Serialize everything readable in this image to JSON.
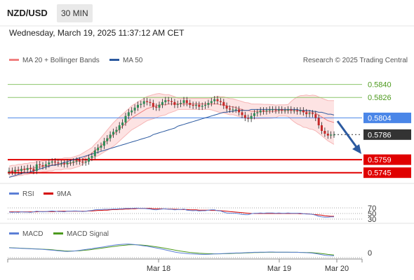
{
  "header": {
    "pair": "NZD/USD",
    "timeframe": "30 MIN"
  },
  "timestamp": "Wednesday, March 19, 2025 11:37:12 AM CET",
  "credit": "Research © 2025 Trading Central",
  "colors": {
    "ma20": "#f08080",
    "ma50": "#2c5aa0",
    "rsi": "#5b7fd6",
    "rsi_ma": "#d40000",
    "macd": "#5b7fd6",
    "macd_signal": "#4d9a1e",
    "resistance": "#8cc56a",
    "pivot": "#4a86e8",
    "support": "#e00000",
    "last": "#333333",
    "arrow": "#2c5aa0"
  },
  "chart_data": [
    {
      "type": "candlestick",
      "legend": [
        "MA 20 + Bollinger Bands",
        "MA 50"
      ],
      "ylim": [
        0.57335,
        0.58555
      ],
      "x_ticks": [
        "Mar 18",
        "Mar 19",
        "Mar 20"
      ],
      "price_levels": [
        {
          "label": "0.5840",
          "value": 0.584,
          "kind": "resistance"
        },
        {
          "label": "0.5826",
          "value": 0.5826,
          "kind": "resistance"
        },
        {
          "label": "0.5804",
          "value": 0.5804,
          "kind": "pivot"
        },
        {
          "label": "0.5786",
          "value": 0.5786,
          "kind": "last"
        },
        {
          "label": "0.5759",
          "value": 0.5759,
          "kind": "support"
        },
        {
          "label": "0.5745",
          "value": 0.5745,
          "kind": "support"
        }
      ],
      "close": [
        0.5747,
        0.5746,
        0.5748,
        0.5747,
        0.5749,
        0.5748,
        0.575,
        0.5749,
        0.5747,
        0.5754,
        0.5753,
        0.5752,
        0.5754,
        0.5756,
        0.5757,
        0.5756,
        0.5755,
        0.5755,
        0.5754,
        0.5756,
        0.5756,
        0.5757,
        0.5758,
        0.5757,
        0.5756,
        0.5757,
        0.5761,
        0.5763,
        0.5769,
        0.5772,
        0.5774,
        0.5779,
        0.5782,
        0.5786,
        0.5789,
        0.5791,
        0.5796,
        0.5799,
        0.5806,
        0.581,
        0.5812,
        0.5815,
        0.5818,
        0.5819,
        0.5822,
        0.5821,
        0.582,
        0.5816,
        0.5815,
        0.5818,
        0.5821,
        0.5823,
        0.5822,
        0.5821,
        0.5818,
        0.5819,
        0.582,
        0.5823,
        0.582,
        0.5818,
        0.5817,
        0.5818,
        0.5816,
        0.5817,
        0.5818,
        0.582,
        0.5822,
        0.5824,
        0.5822,
        0.5821,
        0.5817,
        0.5814,
        0.5813,
        0.5813,
        0.5813,
        0.581,
        0.5807,
        0.5804,
        0.5803,
        0.5806,
        0.5809,
        0.581,
        0.5812,
        0.5811,
        0.5812,
        0.5813,
        0.5813,
        0.5812,
        0.5813,
        0.5812,
        0.5812,
        0.5813,
        0.5812,
        0.5812,
        0.5811,
        0.5812,
        0.581,
        0.5808,
        0.5809,
        0.5808,
        0.5804,
        0.5796,
        0.579,
        0.5787,
        0.5785,
        0.5786,
        0.5786
      ],
      "ma20": [
        0.5746,
        0.5747,
        0.5747,
        0.5748,
        0.5748,
        0.5749,
        0.5749,
        0.575,
        0.575,
        0.5751,
        0.5751,
        0.5752,
        0.5752,
        0.5753,
        0.5753,
        0.5754,
        0.5754,
        0.5754,
        0.5755,
        0.5755,
        0.5755,
        0.5756,
        0.5757,
        0.5758,
        0.576,
        0.5762,
        0.5764,
        0.5766,
        0.5769,
        0.5771,
        0.5774,
        0.5777,
        0.578,
        0.5783,
        0.5786,
        0.5789,
        0.5792,
        0.5795,
        0.5798,
        0.5801,
        0.5804,
        0.5806,
        0.5808,
        0.581,
        0.5812,
        0.5814,
        0.5815,
        0.5816,
        0.5817,
        0.5818,
        0.5818,
        0.5818,
        0.5819,
        0.5819,
        0.5819,
        0.5819,
        0.5819,
        0.5819,
        0.5819,
        0.5819,
        0.5819,
        0.5819,
        0.5819,
        0.5819,
        0.5819,
        0.5819,
        0.5819,
        0.5819,
        0.5819,
        0.5818,
        0.5818,
        0.5817,
        0.5816,
        0.5816,
        0.5815,
        0.5814,
        0.5813,
        0.5812,
        0.5812,
        0.5811,
        0.5811,
        0.5811,
        0.5811,
        0.5811,
        0.5811,
        0.5811,
        0.5811,
        0.5811,
        0.5812,
        0.5812,
        0.5812,
        0.5812,
        0.5812,
        0.5812,
        0.5812,
        0.5812,
        0.5811,
        0.5811,
        0.581,
        0.581,
        0.5809,
        0.5807,
        0.5805,
        0.5803,
        0.5801,
        0.58,
        0.5799
      ],
      "ma50": [
        0.574,
        0.5741,
        0.5742,
        0.5743,
        0.5744,
        0.5745,
        0.5745,
        0.5746,
        0.5747,
        0.5748,
        0.5749,
        0.575,
        0.5751,
        0.5752,
        0.5753,
        0.5753,
        0.5754,
        0.5755,
        0.5756,
        0.5757,
        0.5758,
        0.5759,
        0.576,
        0.5761,
        0.5762,
        0.5763,
        0.5764,
        0.5765,
        0.5766,
        0.5767,
        0.5768,
        0.5769,
        0.577,
        0.5771,
        0.5772,
        0.5773,
        0.5774,
        0.5775,
        0.5776,
        0.5777,
        0.5778,
        0.5779,
        0.578,
        0.5781,
        0.5782,
        0.5783,
        0.5784,
        0.5786,
        0.5787,
        0.5788,
        0.5789,
        0.579,
        0.5791,
        0.5792,
        0.5793,
        0.5795,
        0.5796,
        0.5797,
        0.5798,
        0.5799,
        0.58,
        0.5801,
        0.5802,
        0.5803,
        0.5804,
        0.5805,
        0.5806,
        0.5807,
        0.5808,
        0.5809,
        0.581,
        0.581,
        0.5811,
        0.5811,
        0.5812,
        0.5812,
        0.5812,
        0.5812,
        0.5812,
        0.5813,
        0.5813,
        0.5813,
        0.5813,
        0.5813,
        0.5813,
        0.5813,
        0.5813,
        0.5813,
        0.5813,
        0.5813,
        0.5813,
        0.5813,
        0.5813,
        0.5813,
        0.5813,
        0.5812,
        0.5812,
        0.5812,
        0.5812,
        0.5811,
        0.5811,
        0.581,
        0.581,
        0.5809,
        0.5808,
        0.5808,
        0.5807
      ]
    },
    {
      "type": "line",
      "legend": [
        "RSI",
        "9MA"
      ],
      "ylim": [
        30,
        70
      ],
      "y_ticks": [
        "70",
        "50",
        "30"
      ],
      "rsi": [
        55,
        54,
        55,
        54,
        56,
        55,
        55,
        54,
        56,
        58,
        57,
        56,
        57,
        58,
        59,
        58,
        57,
        57,
        56,
        58,
        58,
        59,
        59,
        58,
        57,
        58,
        60,
        61,
        63,
        64,
        64,
        65,
        65,
        65,
        66,
        66,
        67,
        67,
        68,
        68,
        68,
        69,
        69,
        68,
        68,
        67,
        66,
        64,
        63,
        65,
        66,
        67,
        65,
        65,
        63,
        64,
        64,
        66,
        62,
        61,
        60,
        61,
        59,
        60,
        60,
        62,
        63,
        63,
        60,
        59,
        55,
        52,
        51,
        51,
        51,
        49,
        47,
        46,
        46,
        49,
        51,
        51,
        52,
        51,
        52,
        52,
        52,
        51,
        52,
        51,
        51,
        52,
        51,
        51,
        51,
        51,
        49,
        48,
        48,
        47,
        44,
        40,
        38,
        37,
        37,
        38,
        38
      ],
      "rsi_ma": [
        56,
        56,
        56,
        56,
        56,
        56,
        56,
        56,
        56,
        56,
        57,
        57,
        57,
        57,
        57,
        57,
        58,
        58,
        58,
        58,
        58,
        58,
        58,
        58,
        58,
        58,
        59,
        59,
        60,
        61,
        61,
        62,
        62,
        63,
        64,
        64,
        65,
        65,
        66,
        66,
        67,
        67,
        68,
        68,
        68,
        68,
        68,
        67,
        67,
        67,
        67,
        66,
        66,
        66,
        65,
        65,
        64,
        64,
        64,
        63,
        63,
        63,
        62,
        62,
        62,
        62,
        61,
        61,
        61,
        60,
        59,
        58,
        57,
        56,
        55,
        54,
        53,
        52,
        51,
        50,
        50,
        50,
        50,
        50,
        50,
        50,
        50,
        50,
        50,
        50,
        50,
        50,
        50,
        50,
        50,
        49,
        49,
        49,
        48,
        47,
        46,
        45,
        44,
        42,
        41,
        40,
        40
      ]
    },
    {
      "type": "line",
      "legend": [
        "MACD",
        "MACD Signal"
      ],
      "y_ticks": [
        "0"
      ],
      "macd": [
        0.00035,
        0.00034,
        0.00033,
        0.00032,
        0.00031,
        0.0003,
        0.00029,
        0.00028,
        0.00027,
        0.00026,
        0.00025,
        0.00024,
        0.00022,
        0.0002,
        0.00018,
        0.00016,
        0.00014,
        0.00012,
        0.0001,
        9e-05,
        0.0001,
        0.00012,
        0.00014,
        0.00017,
        0.0002,
        0.00023,
        0.00026,
        0.00029,
        0.00033,
        0.00036,
        0.00039,
        0.00042,
        0.00046,
        0.0005,
        0.00053,
        0.00056,
        0.00058,
        0.0006,
        0.00061,
        0.00062,
        0.0006,
        0.00058,
        0.00055,
        0.00052,
        0.00049,
        0.00046,
        0.00042,
        0.00038,
        0.00034,
        0.0003,
        0.00025,
        0.0002,
        0.00015,
        0.0001,
        5e-05,
        1e-05,
        -2e-05,
        -4e-05,
        -6e-05,
        -8e-05,
        -9e-05,
        -0.0001,
        -0.00011,
        -0.00012,
        -0.00012,
        -0.00011,
        -0.0001,
        -9e-05,
        -8e-05,
        -7e-05,
        -6e-05,
        -5e-05,
        -4e-05,
        -3e-05,
        -2e-05,
        -2e-05,
        -1e-05,
        0.0,
        1e-05,
        2e-05,
        3e-05,
        3e-05,
        4e-05,
        4e-05,
        4e-05,
        5e-05,
        5e-05,
        4e-05,
        4e-05,
        4e-05,
        4e-05,
        4e-05,
        3e-05,
        3e-05,
        3e-05,
        2e-05,
        1e-05,
        0.0,
        -1e-05,
        -3e-05,
        -6e-05,
        -0.0001,
        -0.00014,
        -0.00018,
        -0.0002,
        -0.00021,
        -0.00022
      ],
      "macd_signal": [
        0.00036,
        0.00035,
        0.00034,
        0.00033,
        0.00032,
        0.00031,
        0.0003,
        0.00029,
        0.00028,
        0.00027,
        0.00026,
        0.00025,
        0.00024,
        0.00023,
        0.00021,
        0.00019,
        0.00017,
        0.00015,
        0.00013,
        0.00012,
        0.00012,
        0.00012,
        0.00013,
        0.00014,
        0.00016,
        0.00018,
        0.0002,
        0.00023,
        0.00026,
        0.00029,
        0.00032,
        0.00035,
        0.00038,
        0.00041,
        0.00044,
        0.00047,
        0.0005,
        0.00052,
        0.00054,
        0.00056,
        0.00057,
        0.00057,
        0.00056,
        0.00055,
        0.00053,
        0.00051,
        0.00048,
        0.00045,
        0.00042,
        0.00039,
        0.00035,
        0.00031,
        0.00027,
        0.00023,
        0.00019,
        0.00015,
        0.00011,
        8e-05,
        5e-05,
        2e-05,
        0.0,
        -2e-05,
        -4e-05,
        -5e-05,
        -6e-05,
        -7e-05,
        -7e-05,
        -8e-05,
        -8e-05,
        -8e-05,
        -7e-05,
        -7e-05,
        -6e-05,
        -5e-05,
        -4e-05,
        -4e-05,
        -3e-05,
        -2e-05,
        -1e-05,
        0.0,
        1e-05,
        1e-05,
        2e-05,
        2e-05,
        3e-05,
        3e-05,
        3e-05,
        3e-05,
        3e-05,
        3e-05,
        3e-05,
        3e-05,
        3e-05,
        3e-05,
        3e-05,
        2e-05,
        2e-05,
        1e-05,
        1e-05,
        0.0,
        -2e-05,
        -4e-05,
        -6e-05,
        -9e-05,
        -0.00012,
        -0.00014,
        -0.00016
      ]
    }
  ]
}
